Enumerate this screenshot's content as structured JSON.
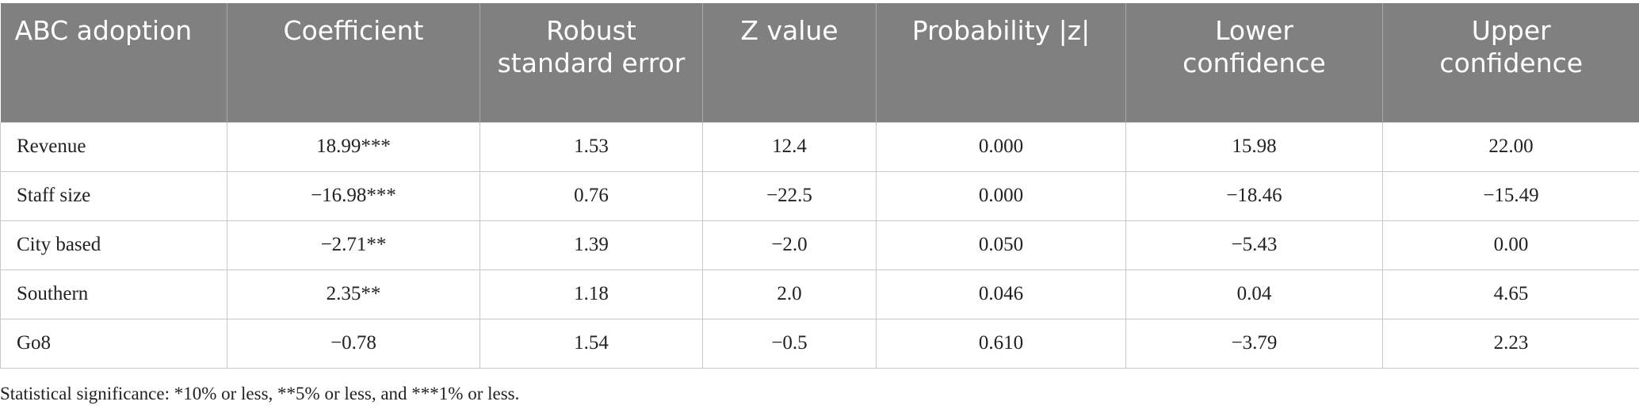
{
  "table": {
    "header": [
      "ABC adoption",
      "Coefficient",
      "Robust standard error",
      "Z value",
      "Probability |z|",
      "Lower confidence",
      "Upper confidence"
    ],
    "rows": [
      [
        "Revenue",
        "18.99***",
        "1.53",
        "12.4",
        "0.000",
        "15.98",
        "22.00"
      ],
      [
        "Staff size",
        "−16.98***",
        "0.76",
        "−22.5",
        "0.000",
        "−18.46",
        "−15.49"
      ],
      [
        "City based",
        "−2.71**",
        "1.39",
        "−2.0",
        "0.050",
        "−5.43",
        "0.00"
      ],
      [
        "Southern",
        "2.35**",
        "1.18",
        "2.0",
        "0.046",
        "0.04",
        "4.65"
      ],
      [
        "Go8",
        "−0.78",
        "1.54",
        "−0.5",
        "0.610",
        "−3.79",
        "2.23"
      ]
    ],
    "footnote": "Statistical significance: *10% or less, **5% or less, and ***1% or less."
  }
}
